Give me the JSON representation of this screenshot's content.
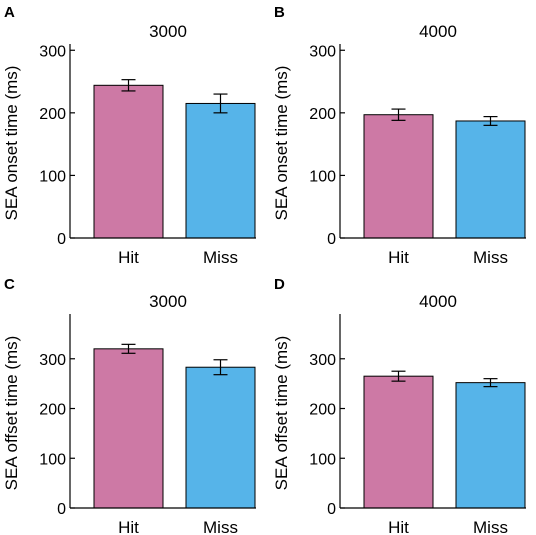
{
  "colors": {
    "hit": "#cd79a5",
    "miss": "#56b4e9",
    "axis": "#000000"
  },
  "chart_data": [
    {
      "type": "bar",
      "panel": "A",
      "title": "3000",
      "ylabel": "SEA onset time (ms)",
      "xlabel": "",
      "categories": [
        "Hit",
        "Miss"
      ],
      "values": [
        244,
        215
      ],
      "errors": [
        9,
        15
      ],
      "ylim": [
        0,
        310
      ],
      "yticks": [
        0,
        100,
        200,
        300
      ],
      "grid": false
    },
    {
      "type": "bar",
      "panel": "B",
      "title": "4000",
      "ylabel": "SEA onset time (ms)",
      "xlabel": "",
      "categories": [
        "Hit",
        "Miss"
      ],
      "values": [
        197,
        187
      ],
      "errors": [
        9,
        7
      ],
      "ylim": [
        0,
        310
      ],
      "yticks": [
        0,
        100,
        200,
        300
      ],
      "grid": false
    },
    {
      "type": "bar",
      "panel": "C",
      "title": "3000",
      "ylabel": "SEA offset time (ms)",
      "xlabel": "",
      "categories": [
        "Hit",
        "Miss"
      ],
      "values": [
        320,
        283
      ],
      "errors": [
        9,
        15
      ],
      "ylim": [
        0,
        390
      ],
      "yticks": [
        0,
        100,
        200,
        300
      ],
      "grid": false
    },
    {
      "type": "bar",
      "panel": "D",
      "title": "4000",
      "ylabel": "SEA offset time (ms)",
      "xlabel": "",
      "categories": [
        "Hit",
        "Miss"
      ],
      "values": [
        265,
        252
      ],
      "errors": [
        10,
        8
      ],
      "ylim": [
        0,
        390
      ],
      "yticks": [
        0,
        100,
        200,
        300
      ],
      "grid": false
    }
  ]
}
